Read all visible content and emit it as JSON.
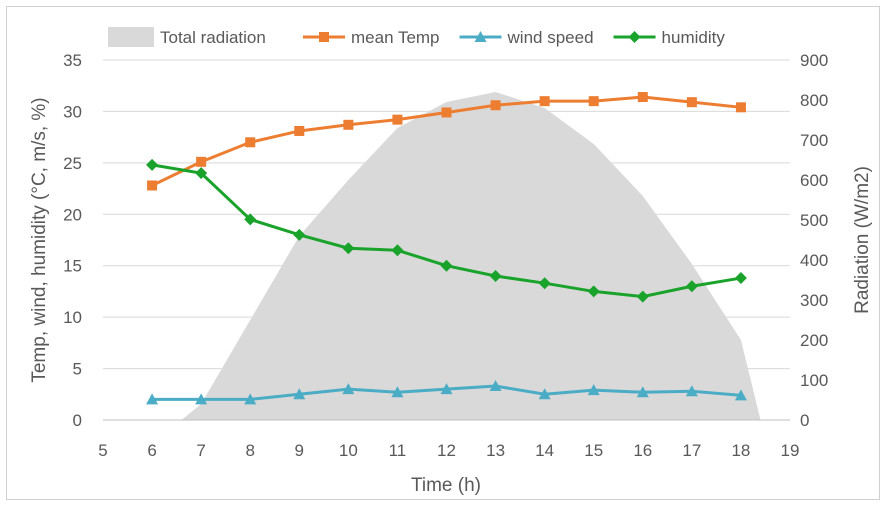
{
  "chart_data": {
    "type": "line",
    "x": [
      6,
      7,
      8,
      9,
      10,
      11,
      12,
      13,
      14,
      15,
      16,
      17,
      18
    ],
    "xlabel": "Time (h)",
    "ylabel": "Temp, wind, humidity (°C, m/s, %)",
    "y2label": "Radiation (W/m2)",
    "xlim": [
      5,
      19
    ],
    "xticks": [
      5,
      6,
      7,
      8,
      9,
      10,
      11,
      12,
      13,
      14,
      15,
      16,
      17,
      18,
      19
    ],
    "ylim": [
      0,
      35
    ],
    "yticks": [
      0,
      5,
      10,
      15,
      20,
      25,
      30,
      35
    ],
    "y2lim": [
      0,
      900
    ],
    "y2ticks": [
      0,
      100,
      200,
      300,
      400,
      500,
      600,
      700,
      800,
      900
    ],
    "grid": true,
    "legend_position": "top",
    "area_series": {
      "name": "Total radiation",
      "axis": "right",
      "color": "#d9d9d9",
      "x": [
        6.6,
        7,
        8,
        9,
        10,
        11,
        12,
        13,
        14,
        15,
        16,
        17,
        18,
        18.4
      ],
      "values": [
        0,
        40,
        250,
        460,
        600,
        730,
        795,
        820,
        780,
        690,
        560,
        390,
        200,
        0
      ]
    },
    "series": [
      {
        "name": "mean Temp",
        "color": "#ed7d31",
        "marker": "square",
        "values": [
          22.8,
          25.1,
          27.0,
          28.1,
          28.7,
          29.2,
          29.9,
          30.6,
          31.0,
          31.0,
          31.4,
          30.9,
          30.4
        ]
      },
      {
        "name": "wind speed",
        "color": "#4bacc6",
        "marker": "triangle",
        "values": [
          2.0,
          2.0,
          2.0,
          2.5,
          3.0,
          2.7,
          3.0,
          3.3,
          2.5,
          2.9,
          2.7,
          2.8,
          2.4
        ]
      },
      {
        "name": "humidity",
        "color": "#1aa32b",
        "marker": "diamond",
        "values": [
          24.8,
          24.0,
          19.5,
          18.0,
          16.7,
          16.5,
          15.0,
          14.0,
          13.3,
          12.5,
          12.0,
          13.0,
          13.8
        ]
      }
    ]
  }
}
